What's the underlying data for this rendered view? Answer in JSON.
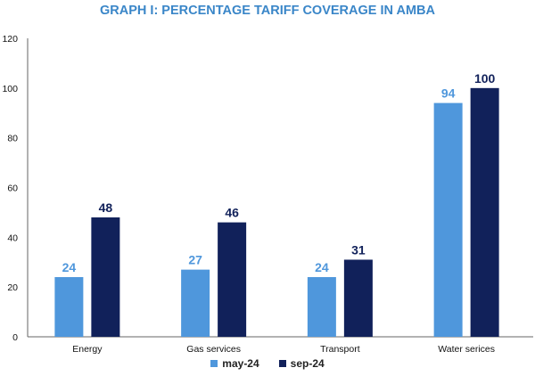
{
  "chart_data": {
    "type": "bar",
    "title": "GRAPH I: PERCENTAGE TARIFF COVERAGE IN AMBA",
    "categories": [
      "Energy",
      "Gas services",
      "Transport",
      "Water serices"
    ],
    "series": [
      {
        "name": "may-24",
        "values": [
          24,
          27,
          24,
          94
        ]
      },
      {
        "name": "sep-24",
        "values": [
          48,
          46,
          31,
          100
        ]
      }
    ],
    "ylim": [
      0,
      120
    ],
    "yticks": [
      0,
      20,
      40,
      60,
      80,
      100,
      120
    ],
    "grid": false,
    "legend_position": "bottom",
    "colors": {
      "title": "#3a86c8",
      "may-24": "#4f97dc",
      "sep-24": "#11215a",
      "axis": "#666666"
    }
  }
}
